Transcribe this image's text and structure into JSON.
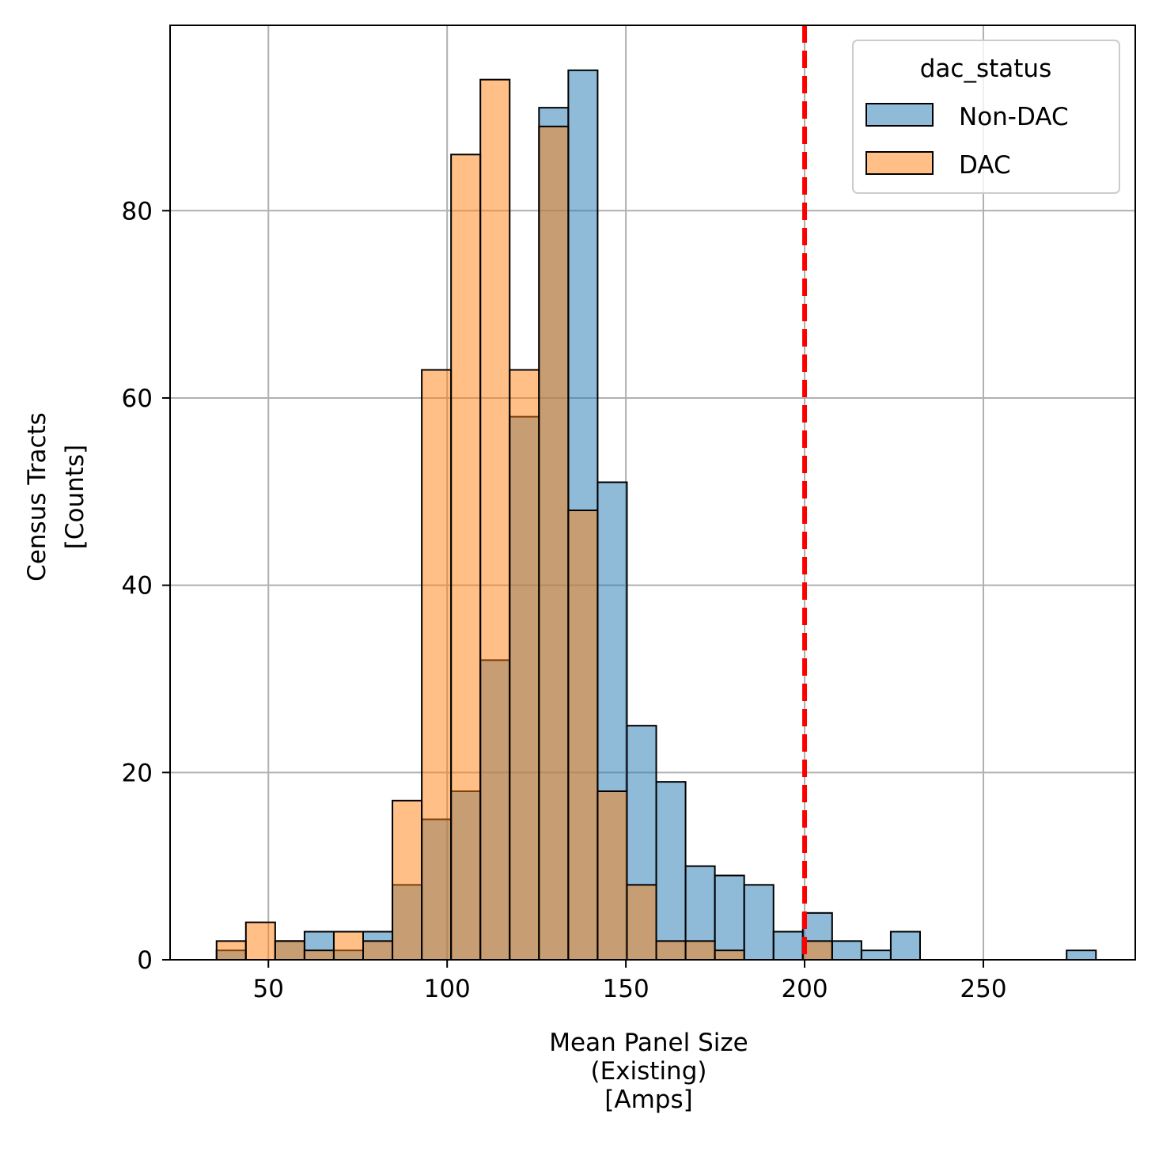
{
  "chart_data": {
    "type": "bar",
    "subtype": "overlapping-histogram",
    "xlabel": [
      "Mean Panel Size",
      "(Existing)",
      "[Amps]"
    ],
    "ylabel": [
      "Census Tracts",
      "[Counts]"
    ],
    "xlim": [
      22.5,
      292.5
    ],
    "ylim": [
      0,
      99.8
    ],
    "xticks": [
      50,
      100,
      150,
      200,
      250
    ],
    "yticks": [
      0,
      20,
      40,
      60,
      80
    ],
    "grid": true,
    "bin_edges": [
      35.5,
      43.7,
      51.9,
      60.1,
      68.3,
      76.5,
      84.7,
      92.9,
      101.1,
      109.3,
      117.5,
      125.7,
      133.9,
      142.1,
      150.3,
      158.5,
      166.7,
      174.9,
      183.1,
      191.3,
      199.5,
      207.7,
      215.9,
      224.1,
      232.3,
      240.5,
      248.7,
      256.9,
      265.1,
      273.3,
      281.5
    ],
    "series": [
      {
        "name": "Non-DAC",
        "color": "#1f77b4",
        "values": [
          1,
          0,
          2,
          3,
          1,
          3,
          8,
          15,
          18,
          32,
          58,
          91,
          95,
          51,
          25,
          19,
          10,
          9,
          8,
          3,
          5,
          2,
          1,
          3,
          0,
          0,
          0,
          0,
          0,
          1
        ]
      },
      {
        "name": "DAC",
        "color": "#ff7f0e",
        "values": [
          2,
          4,
          2,
          1,
          3,
          2,
          17,
          63,
          86,
          94,
          63,
          89,
          48,
          18,
          8,
          2,
          2,
          1,
          0,
          0,
          2,
          0,
          0,
          0,
          0,
          0,
          0,
          0,
          0,
          0
        ]
      }
    ],
    "reference_line": {
      "x": 200,
      "color": "#ff0000",
      "style": "dashed"
    },
    "legend": {
      "title": "dac_status",
      "position": "top-right"
    }
  }
}
